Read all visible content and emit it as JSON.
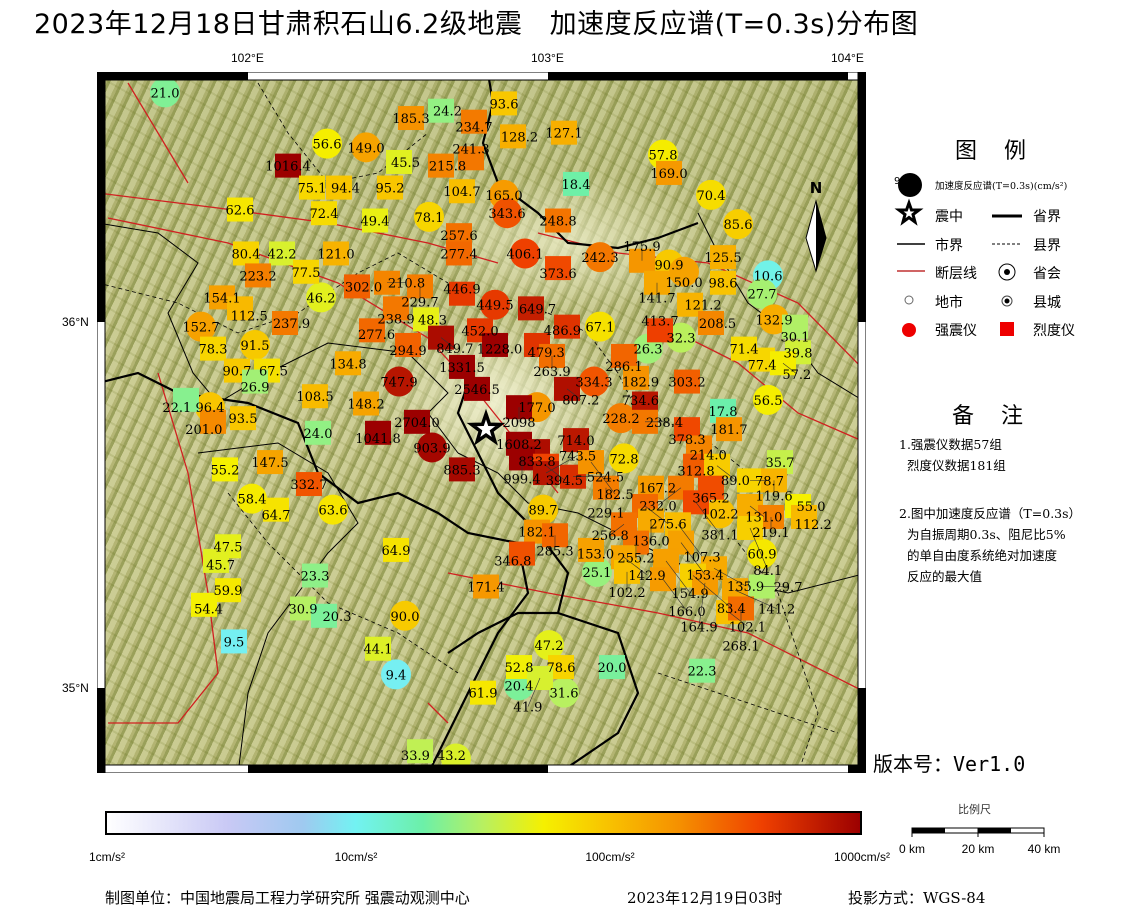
{
  "title": "2023年12月18日甘肃积石山6.2级地震   加速度反应谱(T=0.3s)分布图",
  "axes": {
    "lon_ticks": [
      "102°E",
      "103°E",
      "104°E"
    ],
    "lat_ticks": [
      "36°N",
      "35°N"
    ]
  },
  "epicenter": {
    "lon": 102.79,
    "lat": 35.71
  },
  "stations": [
    [
      "c",
      101.72,
      36.63,
      "21.0"
    ],
    [
      "c",
      102.26,
      36.49,
      "56.6"
    ],
    [
      "c",
      102.39,
      36.48,
      "149.0"
    ],
    [
      "c",
      102.6,
      36.29,
      "78.1"
    ],
    [
      "c",
      102.24,
      36.07,
      "46.2"
    ],
    [
      "c",
      101.84,
      35.99,
      "152.7"
    ],
    [
      "c",
      102.02,
      35.94,
      "91.5"
    ],
    [
      "c",
      102.5,
      35.84,
      "747.9"
    ],
    [
      "c",
      102.61,
      35.66,
      "903.9"
    ],
    [
      "c",
      101.87,
      35.77,
      "96.4"
    ],
    [
      "c",
      102.01,
      35.52,
      "58.4"
    ],
    [
      "c",
      102.28,
      35.49,
      "63.6"
    ],
    [
      "c",
      102.52,
      35.2,
      "90.0"
    ],
    [
      "c",
      102.49,
      35.04,
      "9.4"
    ],
    [
      "c",
      102.85,
      36.35,
      "165.0"
    ],
    [
      "c",
      102.86,
      36.3,
      "343.6"
    ],
    [
      "c",
      102.92,
      36.19,
      "406.1"
    ],
    [
      "c",
      102.82,
      36.05,
      "449.5"
    ],
    [
      "c",
      103.17,
      36.18,
      "242.3"
    ],
    [
      "c",
      103.4,
      36.16,
      "90.9"
    ],
    [
      "c",
      103.45,
      36.14,
      "150.0"
    ],
    [
      "c",
      103.17,
      35.99,
      "67.1"
    ],
    [
      "c",
      103.33,
      35.93,
      "26.3"
    ],
    [
      "c",
      103.44,
      35.96,
      "32.3"
    ],
    [
      "c",
      103.15,
      35.84,
      "334.3"
    ],
    [
      "c",
      102.96,
      35.77,
      "177.0"
    ],
    [
      "c",
      103.24,
      35.74,
      "228.2"
    ],
    [
      "c",
      103.25,
      35.63,
      "72.8"
    ],
    [
      "c",
      102.98,
      35.49,
      "89.7"
    ],
    [
      "c",
      103.57,
      35.48,
      "102.2"
    ],
    [
      "c",
      103.71,
      35.37,
      "60.9"
    ],
    [
      "c",
      103.16,
      35.32,
      "25.1"
    ],
    [
      "c",
      103.0,
      35.12,
      "47.2"
    ],
    [
      "c",
      102.9,
      35.01,
      "20.4"
    ],
    [
      "c",
      103.05,
      34.99,
      "31.6"
    ],
    [
      "c",
      102.69,
      34.81,
      "43.2"
    ],
    [
      "c",
      103.38,
      36.46,
      "57.8"
    ],
    [
      "c",
      103.54,
      36.35,
      "70.4"
    ],
    [
      "c",
      103.63,
      36.27,
      "85.6"
    ],
    [
      "c",
      103.73,
      36.13,
      "10.6"
    ],
    [
      "c",
      103.71,
      36.08,
      "27.7"
    ],
    [
      "c",
      103.75,
      36.01,
      "132.9"
    ],
    [
      "c",
      103.73,
      35.79,
      "56.5"
    ],
    [
      "s",
      102.13,
      36.43,
      "1016.4"
    ],
    [
      "s",
      102.54,
      36.56,
      "185.3"
    ],
    [
      "s",
      102.64,
      36.58,
      "24.2"
    ],
    [
      "s",
      102.85,
      36.6,
      "93.6"
    ],
    [
      "s",
      102.75,
      36.55,
      "234.7"
    ],
    [
      "s",
      102.88,
      36.51,
      "128.2"
    ],
    [
      "s",
      103.05,
      36.52,
      "127.1"
    ],
    [
      "s",
      102.5,
      36.44,
      "45.5"
    ],
    [
      "s",
      102.64,
      36.43,
      "215.8"
    ],
    [
      "s",
      102.74,
      36.45,
      "241.3"
    ],
    [
      "s",
      102.21,
      36.37,
      "75.1"
    ],
    [
      "s",
      102.3,
      36.37,
      "94.4"
    ],
    [
      "s",
      102.47,
      36.37,
      "95.2"
    ],
    [
      "s",
      102.71,
      36.36,
      "104.7"
    ],
    [
      "s",
      103.09,
      36.38,
      "18.4"
    ],
    [
      "s",
      103.4,
      36.41,
      "169.0"
    ],
    [
      "s",
      101.97,
      36.31,
      "62.6"
    ],
    [
      "s",
      102.25,
      36.3,
      "72.4"
    ],
    [
      "s",
      102.42,
      36.28,
      "49.4"
    ],
    [
      "s",
      103.03,
      36.28,
      "248.8"
    ],
    [
      "s",
      102.7,
      36.24,
      "257.6"
    ],
    [
      "s",
      101.99,
      36.19,
      "80.4"
    ],
    [
      "s",
      102.11,
      36.19,
      "42.2"
    ],
    [
      "s",
      102.29,
      36.19,
      "121.0"
    ],
    [
      "s",
      102.7,
      36.19,
      "277.4"
    ],
    [
      "s",
      102.03,
      36.13,
      "223.2"
    ],
    [
      "s",
      102.19,
      36.14,
      "77.5"
    ],
    [
      "s",
      102.36,
      36.1,
      "302.0"
    ],
    [
      "s",
      102.46,
      36.11,
      "210.8"
    ],
    [
      "s",
      102.57,
      36.1,
      "229.7"
    ],
    [
      "s",
      102.71,
      36.08,
      "446.9"
    ],
    [
      "s",
      103.03,
      36.15,
      "373.6"
    ],
    [
      "s",
      103.31,
      36.17,
      "175.9"
    ],
    [
      "s",
      103.58,
      36.18,
      "125.5"
    ],
    [
      "s",
      103.36,
      36.11,
      "141.7"
    ],
    [
      "s",
      103.58,
      36.11,
      "98.6"
    ],
    [
      "s",
      101.91,
      36.07,
      "154.1"
    ],
    [
      "s",
      101.97,
      36.04,
      "112.5"
    ],
    [
      "s",
      102.49,
      36.04,
      "238.9"
    ],
    [
      "s",
      102.12,
      36.0,
      "237.9"
    ],
    [
      "s",
      103.47,
      36.05,
      "121.2"
    ],
    [
      "s",
      102.94,
      36.04,
      "649.7"
    ],
    [
      "s",
      103.06,
      35.99,
      "486.9"
    ],
    [
      "s",
      102.41,
      35.98,
      "277.6"
    ],
    [
      "s",
      102.59,
      36.01,
      "48.3"
    ],
    [
      "s",
      102.77,
      35.98,
      "452.0"
    ],
    [
      "s",
      102.53,
      35.94,
      "294.9"
    ],
    [
      "s",
      102.64,
      35.96,
      "849.7"
    ],
    [
      "s",
      102.82,
      35.94,
      "1228.0"
    ],
    [
      "s",
      102.96,
      35.94,
      "479.3"
    ],
    [
      "s",
      103.37,
      35.98,
      "413.7"
    ],
    [
      "s",
      103.54,
      36.0,
      "208.5"
    ],
    [
      "s",
      103.82,
      35.99,
      "30.1"
    ],
    [
      "s",
      101.88,
      35.93,
      "78.3"
    ],
    [
      "s",
      101.96,
      35.87,
      "90.7"
    ],
    [
      "s",
      102.06,
      35.87,
      "67.5"
    ],
    [
      "s",
      102.33,
      35.89,
      "134.8"
    ],
    [
      "s",
      102.71,
      35.88,
      "1331.5"
    ],
    [
      "s",
      103.01,
      35.91,
      "263.9"
    ],
    [
      "s",
      103.25,
      35.91,
      "286.1"
    ],
    [
      "s",
      103.65,
      35.93,
      "71.4"
    ],
    [
      "s",
      103.83,
      35.92,
      "39.8"
    ],
    [
      "s",
      102.02,
      35.84,
      "26.9"
    ],
    [
      "s",
      103.71,
      35.9,
      "77.4"
    ],
    [
      "s",
      103.78,
      35.89,
      "57.2"
    ],
    [
      "s",
      102.76,
      35.82,
      "2546.5"
    ],
    [
      "s",
      103.06,
      35.82,
      "807.2"
    ],
    [
      "s",
      103.29,
      35.85,
      "182.9"
    ],
    [
      "s",
      103.46,
      35.84,
      "303.2"
    ],
    [
      "s",
      102.22,
      35.8,
      "108.5"
    ],
    [
      "s",
      102.39,
      35.78,
      "148.2"
    ],
    [
      "s",
      101.79,
      35.79,
      "22.1"
    ],
    [
      "s",
      101.98,
      35.74,
      "93.5"
    ],
    [
      "s",
      101.88,
      35.73,
      "201.0"
    ],
    [
      "s",
      103.58,
      35.76,
      "17.8"
    ],
    [
      "s",
      102.56,
      35.73,
      "2704.0"
    ],
    [
      "s",
      102.43,
      35.7,
      "1041.8"
    ],
    [
      "s",
      102.23,
      35.7,
      "24.0"
    ],
    [
      "s",
      102.9,
      35.77,
      "2098"
    ],
    [
      "s",
      103.32,
      35.78,
      "734.6"
    ],
    [
      "s",
      103.32,
      35.73,
      "238.4"
    ],
    [
      "s",
      103.46,
      35.71,
      "378.3"
    ],
    [
      "s",
      103.6,
      35.71,
      "181.7"
    ],
    [
      "s",
      103.5,
      35.66,
      "214.0"
    ],
    [
      "s",
      102.9,
      35.67,
      "1608.2"
    ],
    [
      "s",
      103.09,
      35.68,
      "714.0"
    ],
    [
      "s",
      102.96,
      35.65,
      "833.8"
    ],
    [
      "s",
      102.91,
      35.63,
      "999.4"
    ],
    [
      "s",
      102.99,
      35.61,
      "394.5"
    ],
    [
      "s",
      103.49,
      35.61,
      "312.8"
    ],
    [
      "s",
      103.56,
      35.61,
      "89.0"
    ],
    [
      "s",
      101.92,
      35.6,
      "55.2"
    ],
    [
      "s",
      102.07,
      35.62,
      "147.5"
    ],
    [
      "s",
      102.71,
      35.6,
      "885.3"
    ],
    [
      "s",
      102.99,
      35.59,
      "743.5"
    ],
    [
      "s",
      103.08,
      35.58,
      "524.5"
    ],
    [
      "s",
      103.14,
      35.62,
      "182.5"
    ],
    [
      "s",
      103.77,
      35.62,
      "35.7"
    ],
    [
      "s",
      103.67,
      35.57,
      "78.7"
    ],
    [
      "s",
      103.75,
      35.57,
      "119.6"
    ],
    [
      "s",
      102.2,
      35.56,
      "332.7"
    ],
    [
      "s",
      103.34,
      35.55,
      "167.2"
    ],
    [
      "s",
      103.44,
      35.55,
      "232.0"
    ],
    [
      "s",
      103.54,
      35.55,
      "365.2"
    ],
    [
      "s",
      102.09,
      35.49,
      "64.7"
    ],
    [
      "s",
      103.67,
      35.5,
      "131.0"
    ],
    [
      "s",
      103.83,
      35.5,
      "55.0"
    ],
    [
      "s",
      103.85,
      35.47,
      "112.2"
    ],
    [
      "s",
      103.19,
      35.55,
      "229.1"
    ],
    [
      "s",
      103.32,
      35.5,
      "275.6"
    ],
    [
      "s",
      103.49,
      35.51,
      "381.1"
    ],
    [
      "s",
      103.34,
      35.46,
      "136.0"
    ],
    [
      "s",
      103.25,
      35.45,
      "256.8"
    ],
    [
      "s",
      103.43,
      35.45,
      "107.3"
    ],
    [
      "s",
      103.74,
      35.47,
      "219.1"
    ],
    [
      "s",
      101.93,
      35.39,
      "47.5"
    ],
    [
      "s",
      102.96,
      35.43,
      "182.1"
    ],
    [
      "s",
      103.02,
      35.42,
      "285.3"
    ],
    [
      "s",
      103.67,
      35.44,
      "84.1"
    ],
    [
      "s",
      103.29,
      35.4,
      "255.2"
    ],
    [
      "s",
      103.44,
      35.4,
      "153.4"
    ],
    [
      "s",
      103.14,
      35.38,
      "153.0"
    ],
    [
      "s",
      103.25,
      35.36,
      "142.9"
    ],
    [
      "s",
      102.91,
      35.37,
      "346.8"
    ],
    [
      "s",
      102.49,
      35.38,
      "64.9"
    ],
    [
      "s",
      101.89,
      35.35,
      "45.7"
    ],
    [
      "s",
      103.39,
      35.35,
      "154.9"
    ],
    [
      "s",
      103.55,
      35.33,
      "135.9"
    ],
    [
      "s",
      103.26,
      35.32,
      "102.2"
    ],
    [
      "s",
      103.38,
      35.3,
      "166.0"
    ],
    [
      "s",
      103.48,
      35.31,
      "83.4"
    ],
    [
      "s",
      102.22,
      35.31,
      "23.3"
    ],
    [
      "s",
      102.79,
      35.28,
      "171.4"
    ],
    [
      "s",
      103.52,
      35.29,
      "164.9"
    ],
    [
      "s",
      103.62,
      35.27,
      "141.2"
    ],
    [
      "s",
      103.71,
      35.28,
      "29.7"
    ],
    [
      "s",
      101.93,
      35.27,
      "59.9"
    ],
    [
      "s",
      101.85,
      35.23,
      "54.4"
    ],
    [
      "s",
      102.18,
      35.22,
      "30.9"
    ],
    [
      "s",
      102.25,
      35.2,
      "20.3"
    ],
    [
      "s",
      103.6,
      35.21,
      "102.1"
    ],
    [
      "s",
      103.64,
      35.22,
      "268.1"
    ],
    [
      "s",
      101.95,
      35.13,
      "9.5"
    ],
    [
      "s",
      102.43,
      35.11,
      "44.1"
    ],
    [
      "s",
      102.9,
      35.06,
      "52.8"
    ],
    [
      "s",
      103.04,
      35.06,
      "78.6"
    ],
    [
      "s",
      102.97,
      35.03,
      "41.9"
    ],
    [
      "s",
      103.21,
      35.06,
      "20.0"
    ],
    [
      "s",
      103.51,
      35.05,
      "22.3"
    ],
    [
      "s",
      102.78,
      34.99,
      "61.9"
    ],
    [
      "s",
      102.57,
      34.83,
      "33.9"
    ]
  ],
  "north_arrow": "N",
  "legend": {
    "title": "图 例",
    "sample_value": "9",
    "spectrum_label": "加速度反应谱(T=0.3s)(cm/s²)",
    "epicenter": "震中",
    "province_border": "省界",
    "city_border": "市界",
    "county_border": "县界",
    "fault": "断层线",
    "provincial_capital": "省会",
    "city": "地市",
    "county_town": "县城",
    "strong_motion": "强震仪",
    "intensity_meter": "烈度仪",
    "colors": {
      "strong_motion": "#ee0000",
      "intensity_meter": "#ee0000",
      "fault": "#d02020"
    }
  },
  "notes": {
    "title": "备 注",
    "item1": "1.强震仪数据57组\n  烈度仪数据181组",
    "item2": "2.图中加速度反应谱（T=0.3s）\n  为自振周期0.3s、阻尼比5%\n  的单自由度系统绝对加速度\n  反应的最大值"
  },
  "version": "版本号：Ver1.0",
  "colorbar": {
    "scale": "log",
    "range": [
      1,
      1000
    ],
    "labels": [
      "1cm/s²",
      "10cm/s²",
      "100cm/s²",
      "1000cm/s²"
    ],
    "colors": [
      "#ffffff",
      "#c9c9f5",
      "#72f2f2",
      "#b8f060",
      "#f5f000",
      "#f59000",
      "#ef4000",
      "#9c0000"
    ]
  },
  "scale_bar": {
    "title": "比例尺",
    "labels": [
      "0 km",
      "20 km",
      "40 km"
    ]
  },
  "footer": {
    "unit": "制图单位：中国地震局工程力学研究所 强震动观测中心",
    "date": "2023年12月19日03时",
    "projection": "投影方式：WGS-84"
  }
}
